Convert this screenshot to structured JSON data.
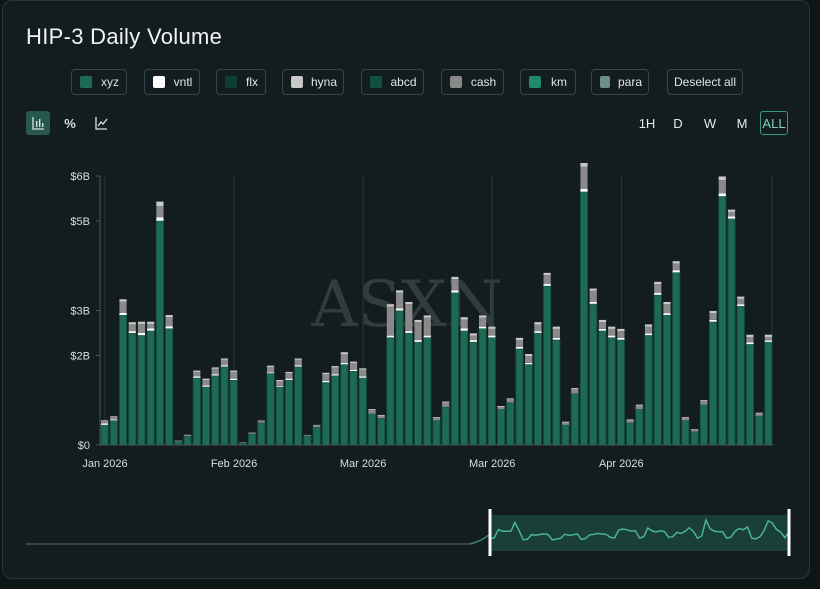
{
  "title": "HIP-3 Daily Volume",
  "watermark": "ASXN",
  "legend": [
    {
      "label": "xyz",
      "color": "#1d6b54"
    },
    {
      "label": "vntl",
      "color": "#ffffff"
    },
    {
      "label": "flx",
      "color": "#0d3f33"
    },
    {
      "label": "hyna",
      "color": "#c8c8c8"
    },
    {
      "label": "abcd",
      "color": "#0f5040"
    },
    {
      "label": "cash",
      "color": "#8a8a8a"
    },
    {
      "label": "km",
      "color": "#218a6d"
    },
    {
      "label": "para",
      "color": "#6e8d86"
    }
  ],
  "deselect_label": "Deselect all",
  "toolbar": {
    "views": [
      {
        "name": "bar-chart-icon",
        "glyph": "",
        "active": true
      },
      {
        "name": "percent-icon",
        "glyph": "%",
        "active": false
      },
      {
        "name": "line-chart-icon",
        "glyph": "",
        "active": false
      }
    ],
    "timeframes": [
      {
        "label": "1H",
        "active": false
      },
      {
        "label": "D",
        "active": false
      },
      {
        "label": "W",
        "active": false
      },
      {
        "label": "M",
        "active": false
      },
      {
        "label": "ALL",
        "active": true
      }
    ]
  },
  "chart_data": {
    "type": "bar",
    "stacked": true,
    "ylim": [
      0,
      6
    ],
    "y_ticks": [
      0,
      2,
      3,
      5,
      6
    ],
    "y_tick_labels": [
      "$0",
      "$2B",
      "$3B",
      "$5B",
      "$6B"
    ],
    "x_tick_labels": [
      "Jan 2026",
      "Feb 2026",
      "Mar 2026",
      "Mar 2026",
      "Apr 2026"
    ],
    "x_tick_index": [
      0,
      14,
      28,
      42,
      56
    ],
    "grid": true,
    "legend_position": "top",
    "colors": {
      "xyz": "#1d6b54",
      "vntl": "#ffffff",
      "cash": "#8a8a8a",
      "hyna": "#c8c8c8"
    },
    "series": [
      {
        "name": "xyz",
        "values": [
          0.45,
          0.55,
          2.9,
          2.5,
          2.45,
          2.55,
          5.0,
          2.6,
          0.08,
          0.2,
          1.5,
          1.3,
          1.55,
          1.75,
          1.45,
          0.05,
          0.25,
          0.5,
          1.6,
          1.3,
          1.45,
          1.75,
          0.2,
          0.4,
          1.4,
          1.55,
          1.8,
          1.65,
          1.5,
          0.7,
          0.6,
          2.4,
          3.0,
          2.5,
          2.3,
          2.4,
          0.55,
          0.85,
          3.4,
          2.55,
          2.3,
          2.6,
          2.4,
          0.8,
          0.95,
          2.15,
          1.8,
          2.5,
          3.55,
          2.35,
          0.45,
          1.15,
          5.65,
          3.15,
          2.55,
          2.4,
          2.35,
          0.5,
          0.8,
          2.45,
          3.35,
          2.9,
          3.85,
          0.55,
          0.3,
          0.9,
          2.75,
          5.55,
          5.05,
          3.1,
          2.25,
          0.65,
          2.3
        ]
      },
      {
        "name": "vntl",
        "values": [
          0.03,
          0.02,
          0.05,
          0.04,
          0.05,
          0.05,
          0.08,
          0.05,
          0,
          0,
          0.03,
          0.03,
          0.03,
          0.03,
          0.03,
          0,
          0,
          0,
          0.02,
          0.02,
          0.03,
          0.03,
          0,
          0,
          0.03,
          0.03,
          0.03,
          0.03,
          0.03,
          0,
          0,
          0.04,
          0.05,
          0.04,
          0.04,
          0.04,
          0,
          0,
          0.05,
          0.05,
          0.04,
          0.04,
          0.04,
          0,
          0,
          0.04,
          0.03,
          0.04,
          0.04,
          0.04,
          0,
          0,
          0.06,
          0.04,
          0.04,
          0.04,
          0.04,
          0,
          0,
          0.04,
          0.04,
          0.04,
          0.05,
          0,
          0,
          0,
          0.04,
          0.06,
          0.05,
          0.04,
          0.04,
          0,
          0.03
        ]
      },
      {
        "name": "cash",
        "values": [
          0.05,
          0.05,
          0.25,
          0.15,
          0.2,
          0.1,
          0.25,
          0.2,
          0.02,
          0.03,
          0.1,
          0.12,
          0.12,
          0.12,
          0.15,
          0.01,
          0.03,
          0.05,
          0.12,
          0.1,
          0.12,
          0.12,
          0.02,
          0.05,
          0.15,
          0.15,
          0.2,
          0.15,
          0.15,
          0.08,
          0.05,
          0.65,
          0.35,
          0.6,
          0.4,
          0.4,
          0.05,
          0.1,
          0.25,
          0.2,
          0.1,
          0.2,
          0.15,
          0.05,
          0.07,
          0.15,
          0.15,
          0.15,
          0.2,
          0.2,
          0.05,
          0.1,
          0.5,
          0.25,
          0.15,
          0.15,
          0.15,
          0.05,
          0.08,
          0.15,
          0.2,
          0.2,
          0.15,
          0.05,
          0.03,
          0.08,
          0.15,
          0.3,
          0.1,
          0.12,
          0.12,
          0.05,
          0.08
        ]
      },
      {
        "name": "hyna",
        "values": [
          0.02,
          0.02,
          0.05,
          0.05,
          0.05,
          0.05,
          0.1,
          0.05,
          0,
          0,
          0.03,
          0.03,
          0.03,
          0.03,
          0.03,
          0,
          0,
          0,
          0.03,
          0.03,
          0.03,
          0.03,
          0,
          0,
          0.03,
          0.03,
          0.04,
          0.03,
          0.03,
          0.02,
          0.02,
          0.05,
          0.05,
          0.05,
          0.05,
          0.05,
          0.02,
          0.02,
          0.05,
          0.05,
          0.05,
          0.05,
          0.05,
          0.02,
          0.02,
          0.05,
          0.05,
          0.05,
          0.05,
          0.05,
          0.02,
          0.02,
          0.08,
          0.05,
          0.05,
          0.05,
          0.05,
          0.02,
          0.02,
          0.05,
          0.05,
          0.05,
          0.05,
          0.02,
          0.02,
          0.02,
          0.05,
          0.08,
          0.05,
          0.05,
          0.05,
          0.02,
          0.05
        ]
      }
    ]
  }
}
